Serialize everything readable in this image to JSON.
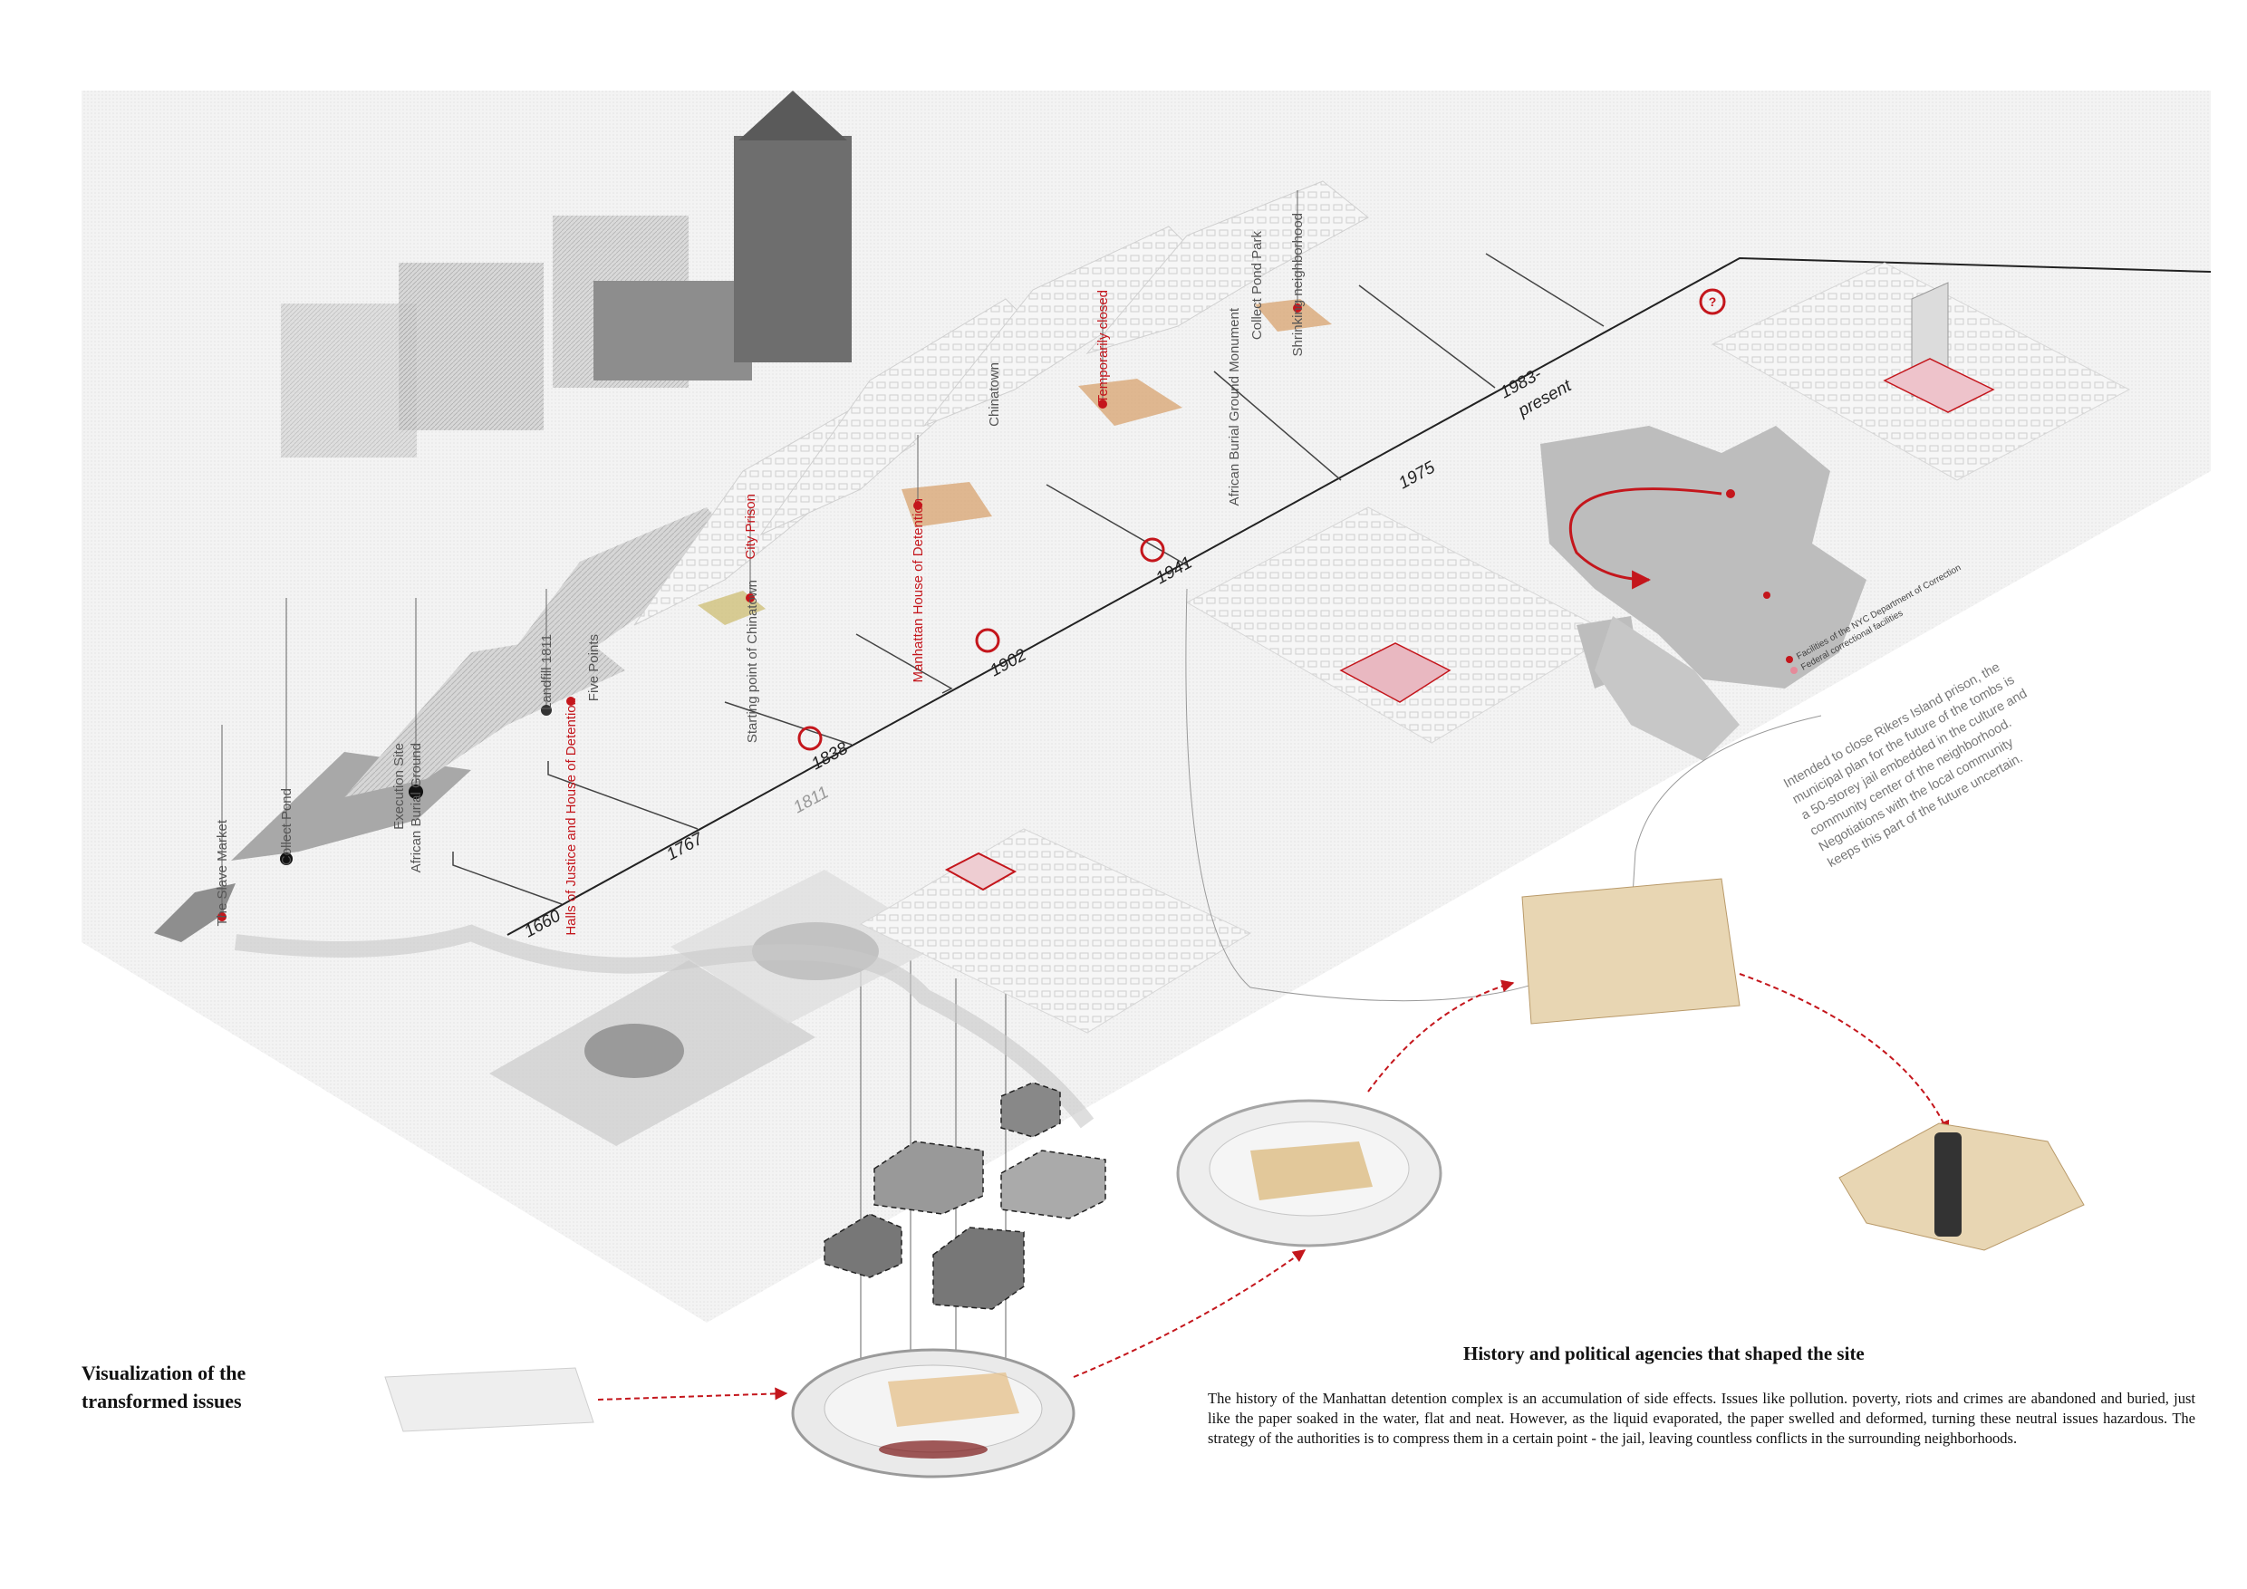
{
  "timeline": {
    "years": [
      {
        "label": "1660"
      },
      {
        "label": "1767"
      },
      {
        "label": "1811",
        "style": "grey"
      },
      {
        "label": "1838"
      },
      {
        "label": "1902"
      },
      {
        "label": "1941"
      },
      {
        "label": "1975"
      },
      {
        "label": "1983-"
      },
      {
        "label": "present"
      }
    ]
  },
  "site_labels": [
    {
      "text": "The Slave Market",
      "color": "grey"
    },
    {
      "text": "Collect Pond",
      "color": "grey"
    },
    {
      "text": "Execution Site",
      "color": "grey"
    },
    {
      "text": "African Burial Ground",
      "color": "grey"
    },
    {
      "text": "Landfill 1811",
      "color": "grey"
    },
    {
      "text": "Halls of Justice and House of Detention",
      "color": "red"
    },
    {
      "text": "Five Points",
      "color": "grey"
    },
    {
      "text": "Starting point of Chinatown",
      "color": "grey"
    },
    {
      "text": "City Prison",
      "color": "red"
    },
    {
      "text": "Manhattan House of Detention",
      "color": "red"
    },
    {
      "text": "Chinatown",
      "color": "grey"
    },
    {
      "text": "Temporarily closed",
      "color": "red"
    },
    {
      "text": "Collect Pond Park",
      "color": "grey"
    },
    {
      "text": "African Burial Ground Monument",
      "color": "grey"
    },
    {
      "text": "Shrinking neighborhood",
      "color": "grey"
    }
  ],
  "future_marker": "?",
  "legend": {
    "items": [
      {
        "label": "Facilities of the NYC Department of Correction",
        "color": "#c4161c"
      },
      {
        "label": "Federal correctional facilities",
        "color": "#e58a9a"
      }
    ]
  },
  "note": {
    "lines": [
      "Intended to close Rikers Island prison, the",
      "municipal plan for the future of the tombs is",
      "a 50-storey jail embedded in the culture and",
      "community center of the neighborhood.",
      "Negotiations with the local community",
      "keeps this part of the future uncertain."
    ]
  },
  "visualization_title": {
    "line1": "Visualization of the",
    "line2": "transformed issues"
  },
  "history": {
    "title": "History and political agencies that shaped the site",
    "body": "The history of the Manhattan detention complex is an accumulation of side effects. Issues like pollution. poverty, riots and crimes are abandoned and buried, just like the paper soaked in the water, flat and neat. However, as the liquid evaporated, the paper swelled and deformed, turning these neutral issues hazardous. The strategy of the authorities is to compress them in a certain point - the jail, leaving countless conflicts in the surrounding neighborhoods."
  },
  "colors": {
    "accent_red": "#c4161c",
    "map_grey": "#bdbdbd",
    "highlight_tan": "#d9a877",
    "paper": "#e8d6b3"
  }
}
